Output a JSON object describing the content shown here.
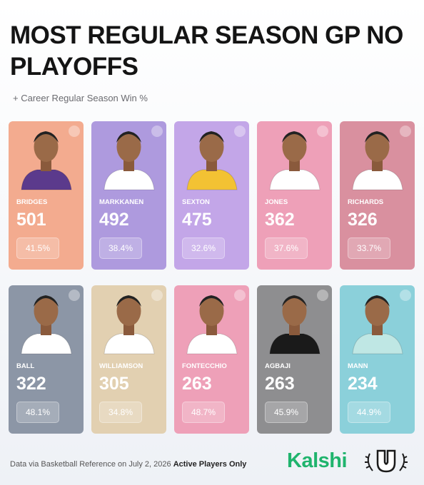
{
  "header": {
    "title": "MOST REGULAR SEASON GP NO PLAYOFFS",
    "subtitle": "+ Career Regular Season Win %"
  },
  "players": [
    {
      "name": "BRIDGES",
      "gp": "501",
      "win_pct": "41.5%",
      "color": "#f3ab8f",
      "jersey": "#5b3a8c"
    },
    {
      "name": "MARKKANEN",
      "gp": "492",
      "win_pct": "38.4%",
      "color": "#ae9ade",
      "jersey": "#ffffff"
    },
    {
      "name": "SEXTON",
      "gp": "475",
      "win_pct": "32.6%",
      "color": "#c3a6e8",
      "jersey": "#f3c233"
    },
    {
      "name": "JONES",
      "gp": "362",
      "win_pct": "37.6%",
      "color": "#eea0b8",
      "jersey": "#ffffff"
    },
    {
      "name": "RICHARDS",
      "gp": "326",
      "win_pct": "33.7%",
      "color": "#d9909f",
      "jersey": "#ffffff"
    },
    {
      "name": "BALL",
      "gp": "322",
      "win_pct": "48.1%",
      "color": "#8c96a6",
      "jersey": "#ffffff"
    },
    {
      "name": "WILLIAMSON",
      "gp": "305",
      "win_pct": "34.8%",
      "color": "#e2d0b1",
      "jersey": "#ffffff"
    },
    {
      "name": "FONTECCHIO",
      "gp": "263",
      "win_pct": "48.7%",
      "color": "#eea0b8",
      "jersey": "#ffffff"
    },
    {
      "name": "AGBAJI",
      "gp": "263",
      "win_pct": "45.9%",
      "color": "#8e8e90",
      "jersey": "#1a1a1a"
    },
    {
      "name": "MANN",
      "gp": "234",
      "win_pct": "44.9%",
      "color": "#8bd0da",
      "jersey": "#bfe7e4"
    }
  ],
  "footer": {
    "source": "Data via Basketball Reference on July 2, 2026",
    "note": "Active Players Only",
    "brand": "Kalshi"
  }
}
